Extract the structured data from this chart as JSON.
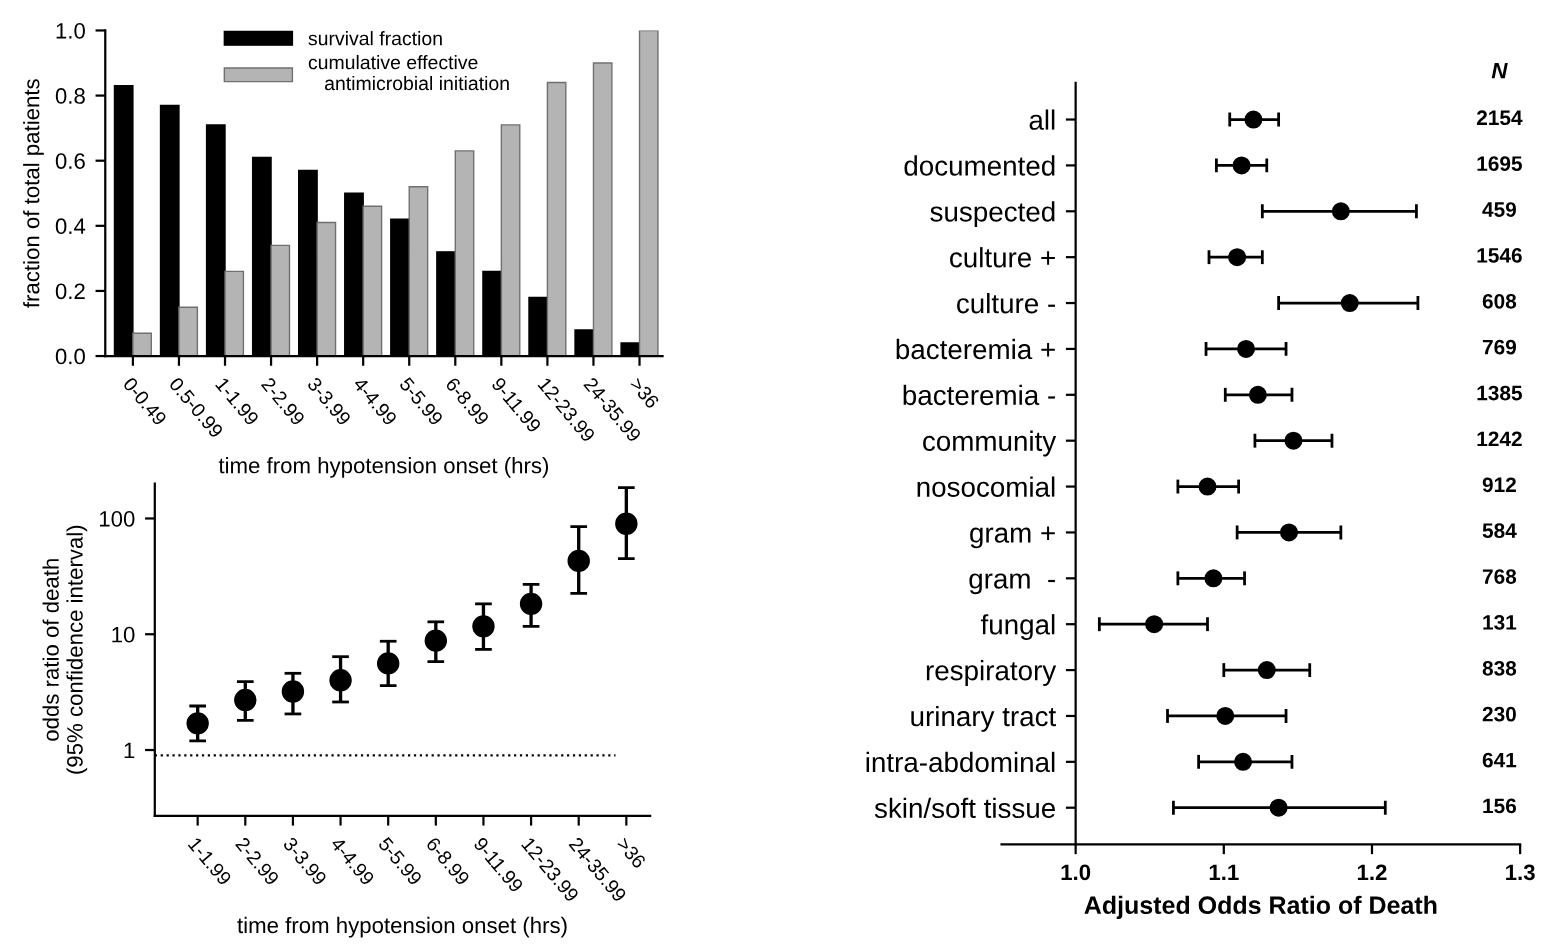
{
  "chart_data": [
    {
      "type": "bar",
      "xlabel": "time from hypotension onset (hrs)",
      "ylabel": "fraction of total patients",
      "categories": [
        "0-0.49",
        "0.5-0.99",
        "1-1.99",
        "2-2.99",
        "3-3.99",
        "4-4.99",
        "5-5.99",
        "6-8.99",
        "9-11.99",
        "12-23.99",
        "24-35.99",
        ">36"
      ],
      "series": [
        {
          "name": "survival fraction",
          "color": "#000000",
          "values": [
            0.83,
            0.77,
            0.71,
            0.61,
            0.57,
            0.5,
            0.42,
            0.32,
            0.26,
            0.18,
            0.08,
            0.04
          ]
        },
        {
          "name": "cumulative effective\n   antimicrobial initiation",
          "color": "#b4b4b4",
          "values": [
            0.07,
            0.15,
            0.26,
            0.34,
            0.41,
            0.46,
            0.52,
            0.63,
            0.71,
            0.84,
            0.9,
            1.0
          ]
        }
      ],
      "ylim": [
        0,
        1.0
      ],
      "yticks": [
        {
          "value": 0,
          "label": "0.0"
        },
        0.2,
        0.4,
        0.6,
        0.8,
        {
          "value": 1.0,
          "label": "1.0"
        }
      ],
      "legend": "top",
      "grid": false
    },
    {
      "type": "scatter",
      "xlabel": "time from hypotension onset (hrs)",
      "ylabel": "odds ratio of death\n(95% confidence interval)",
      "categories": [
        "1-1.99",
        "2-2.99",
        "3-3.99",
        "4-4.99",
        "5-5.99",
        "6-8.99",
        "9-11.99",
        "12-23.99",
        "24-35.99",
        ">36"
      ],
      "values": [
        1.7,
        2.7,
        3.2,
        4.0,
        5.6,
        8.8,
        11.7,
        18.3,
        43,
        90
      ],
      "errors": [
        [
          1.2,
          2.4
        ],
        [
          1.8,
          3.9
        ],
        [
          2.05,
          4.6
        ],
        [
          2.6,
          6.4
        ],
        [
          3.6,
          8.7
        ],
        [
          5.8,
          12.8
        ],
        [
          7.4,
          18.3
        ],
        [
          11.7,
          27
        ],
        [
          22.5,
          85
        ],
        [
          45,
          185
        ]
      ],
      "log": "y",
      "ylim": [
        0.27,
        200
      ],
      "yticks": [
        1,
        10,
        100
      ],
      "marker": "circle",
      "color": "#000000",
      "grid": false,
      "ref_lines": [
        {
          "axis": "y",
          "value": 0.9,
          "line_style": "dotted",
          "color": "#000000"
        }
      ]
    },
    {
      "type": "scatter",
      "orientation": "horizontal",
      "xlabel": "Adjusted Odds Ratio of Death",
      "categories": [
        "all",
        "documented",
        "suspected",
        "culture +",
        "culture -",
        "bacteremia +",
        "bacteremia -",
        "community",
        "nosocomial",
        "gram +",
        "gram  -",
        "fungal",
        "respiratory",
        "urinary tract",
        "intra-abdominal",
        "skin/soft tissue"
      ],
      "values": [
        1.12,
        1.112,
        1.179,
        1.109,
        1.185,
        1.115,
        1.123,
        1.147,
        1.089,
        1.144,
        1.093,
        1.053,
        1.129,
        1.101,
        1.113,
        1.137
      ],
      "errors": [
        [
          1.104,
          1.137
        ],
        [
          1.095,
          1.129
        ],
        [
          1.126,
          1.23
        ],
        [
          1.09,
          1.126
        ],
        [
          1.137,
          1.231
        ],
        [
          1.088,
          1.142
        ],
        [
          1.101,
          1.146
        ],
        [
          1.121,
          1.173
        ],
        [
          1.069,
          1.11
        ],
        [
          1.109,
          1.179
        ],
        [
          1.069,
          1.114
        ],
        [
          1.016,
          1.089
        ],
        [
          1.1,
          1.158
        ],
        [
          1.062,
          1.142
        ],
        [
          1.083,
          1.146
        ],
        [
          1.066,
          1.209
        ]
      ],
      "xlim": [
        0.95,
        1.3
      ],
      "xticks": [
        {
          "value": 1.0,
          "label": "1.0"
        },
        1.1,
        1.2,
        1.3
      ],
      "marker": "circle",
      "color": "#000000",
      "grid": false,
      "annotations": [
        "N",
        "2154",
        "1695",
        "459",
        "1546",
        "608",
        "769",
        "1385",
        "1242",
        "912",
        "584",
        "768",
        "131",
        "838",
        "230",
        "641",
        "156"
      ]
    }
  ]
}
